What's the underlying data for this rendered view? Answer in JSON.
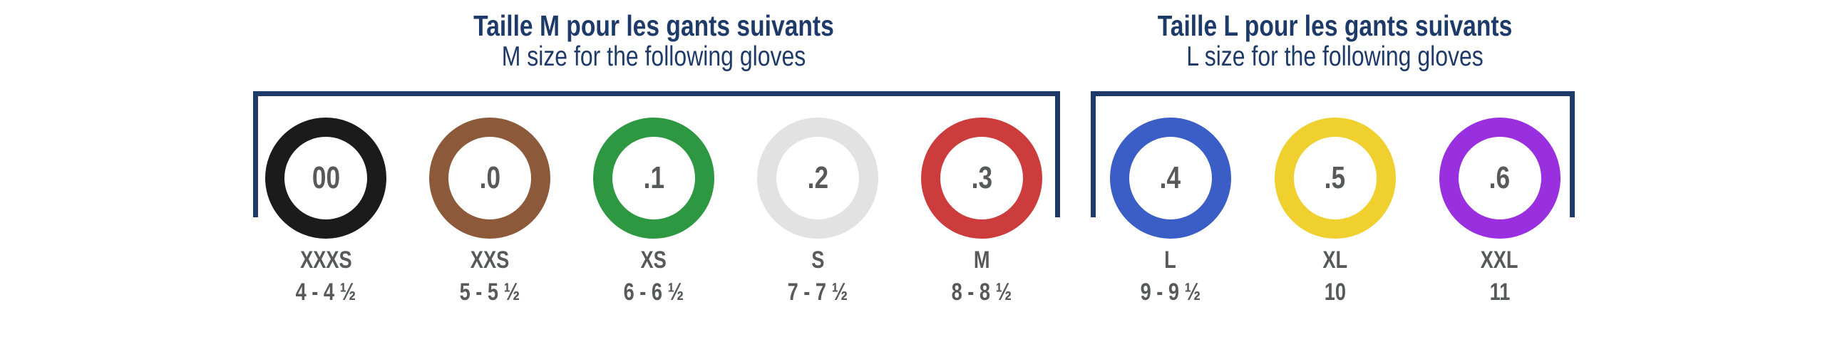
{
  "colors": {
    "navy": "#1e3a68",
    "label_gray": "#58595b",
    "background": "#ffffff"
  },
  "groups": [
    {
      "id": "m",
      "title_fr": "Taille M pour les gants suivants",
      "title_en": "M size for the following gloves",
      "items": [
        {
          "code": "00",
          "ring_color": "#1b1b1b",
          "size_name": "XXXS",
          "size_range": "4 - 4 ½"
        },
        {
          "code": ".0",
          "ring_color": "#8c5a3a",
          "size_name": "XXS",
          "size_range": "5 - 5 ½"
        },
        {
          "code": ".1",
          "ring_color": "#2d9841",
          "size_name": "XS",
          "size_range": "6 - 6 ½"
        },
        {
          "code": ".2",
          "ring_color": "#e2e2e2",
          "size_name": "S",
          "size_range": "7 - 7 ½"
        },
        {
          "code": ".3",
          "ring_color": "#cc3c3c",
          "size_name": "M",
          "size_range": "8 - 8 ½"
        }
      ]
    },
    {
      "id": "l",
      "title_fr": "Taille L pour les gants suivants",
      "title_en": "L size for the following gloves",
      "items": [
        {
          "code": ".4",
          "ring_color": "#3a5ec6",
          "size_name": "L",
          "size_range": "9 - 9 ½"
        },
        {
          "code": ".5",
          "ring_color": "#f0d02f",
          "size_name": "XL",
          "size_range": "10"
        },
        {
          "code": ".6",
          "ring_color": "#9a2fe0",
          "size_name": "XXL",
          "size_range": "11"
        }
      ]
    }
  ]
}
